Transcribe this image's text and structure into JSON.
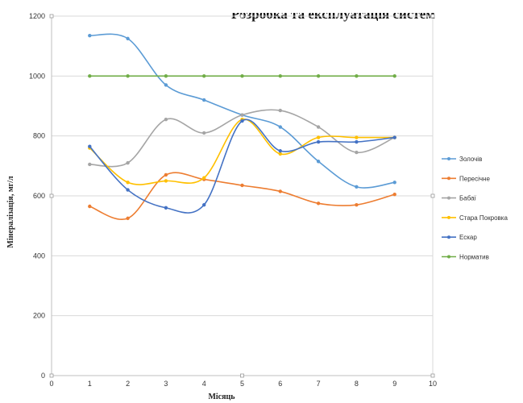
{
  "page_title": "Розробка та експлуатація систем",
  "chart_data": {
    "type": "line",
    "title": "",
    "xlabel": "Місяць",
    "ylabel": "Мінералізація, мг/л",
    "xlim": [
      0,
      10
    ],
    "ylim": [
      0,
      1200
    ],
    "x_ticks": [
      "0",
      "1",
      "2",
      "3",
      "4",
      "5",
      "6",
      "7",
      "8",
      "9",
      "10"
    ],
    "y_ticks": [
      "0",
      "200",
      "400",
      "600",
      "800",
      "1000",
      "1200"
    ],
    "grid": "horizontal",
    "legend_position": "right",
    "smooth": true,
    "x": [
      1,
      2,
      3,
      4,
      5,
      6,
      7,
      8,
      9
    ],
    "series": [
      {
        "name": "Золочів",
        "color": "#5b9bd5",
        "values": [
          1135,
          1125,
          970,
          920,
          870,
          830,
          715,
          630,
          645
        ]
      },
      {
        "name": "Пересічне",
        "color": "#ed7d31",
        "values": [
          565,
          525,
          670,
          655,
          635,
          615,
          575,
          570,
          605
        ]
      },
      {
        "name": "Бабаї",
        "color": "#a5a5a5",
        "values": [
          705,
          710,
          855,
          810,
          870,
          885,
          830,
          745,
          795
        ]
      },
      {
        "name": "Стара Покровка",
        "color": "#ffc000",
        "values": [
          760,
          645,
          650,
          660,
          855,
          740,
          795,
          795,
          795
        ]
      },
      {
        "name": "Ескар",
        "color": "#4472c4",
        "values": [
          765,
          620,
          560,
          570,
          850,
          750,
          780,
          780,
          795
        ]
      },
      {
        "name": "Норматив",
        "color": "#70ad47",
        "values": [
          1000,
          1000,
          1000,
          1000,
          1000,
          1000,
          1000,
          1000,
          1000
        ]
      }
    ]
  }
}
